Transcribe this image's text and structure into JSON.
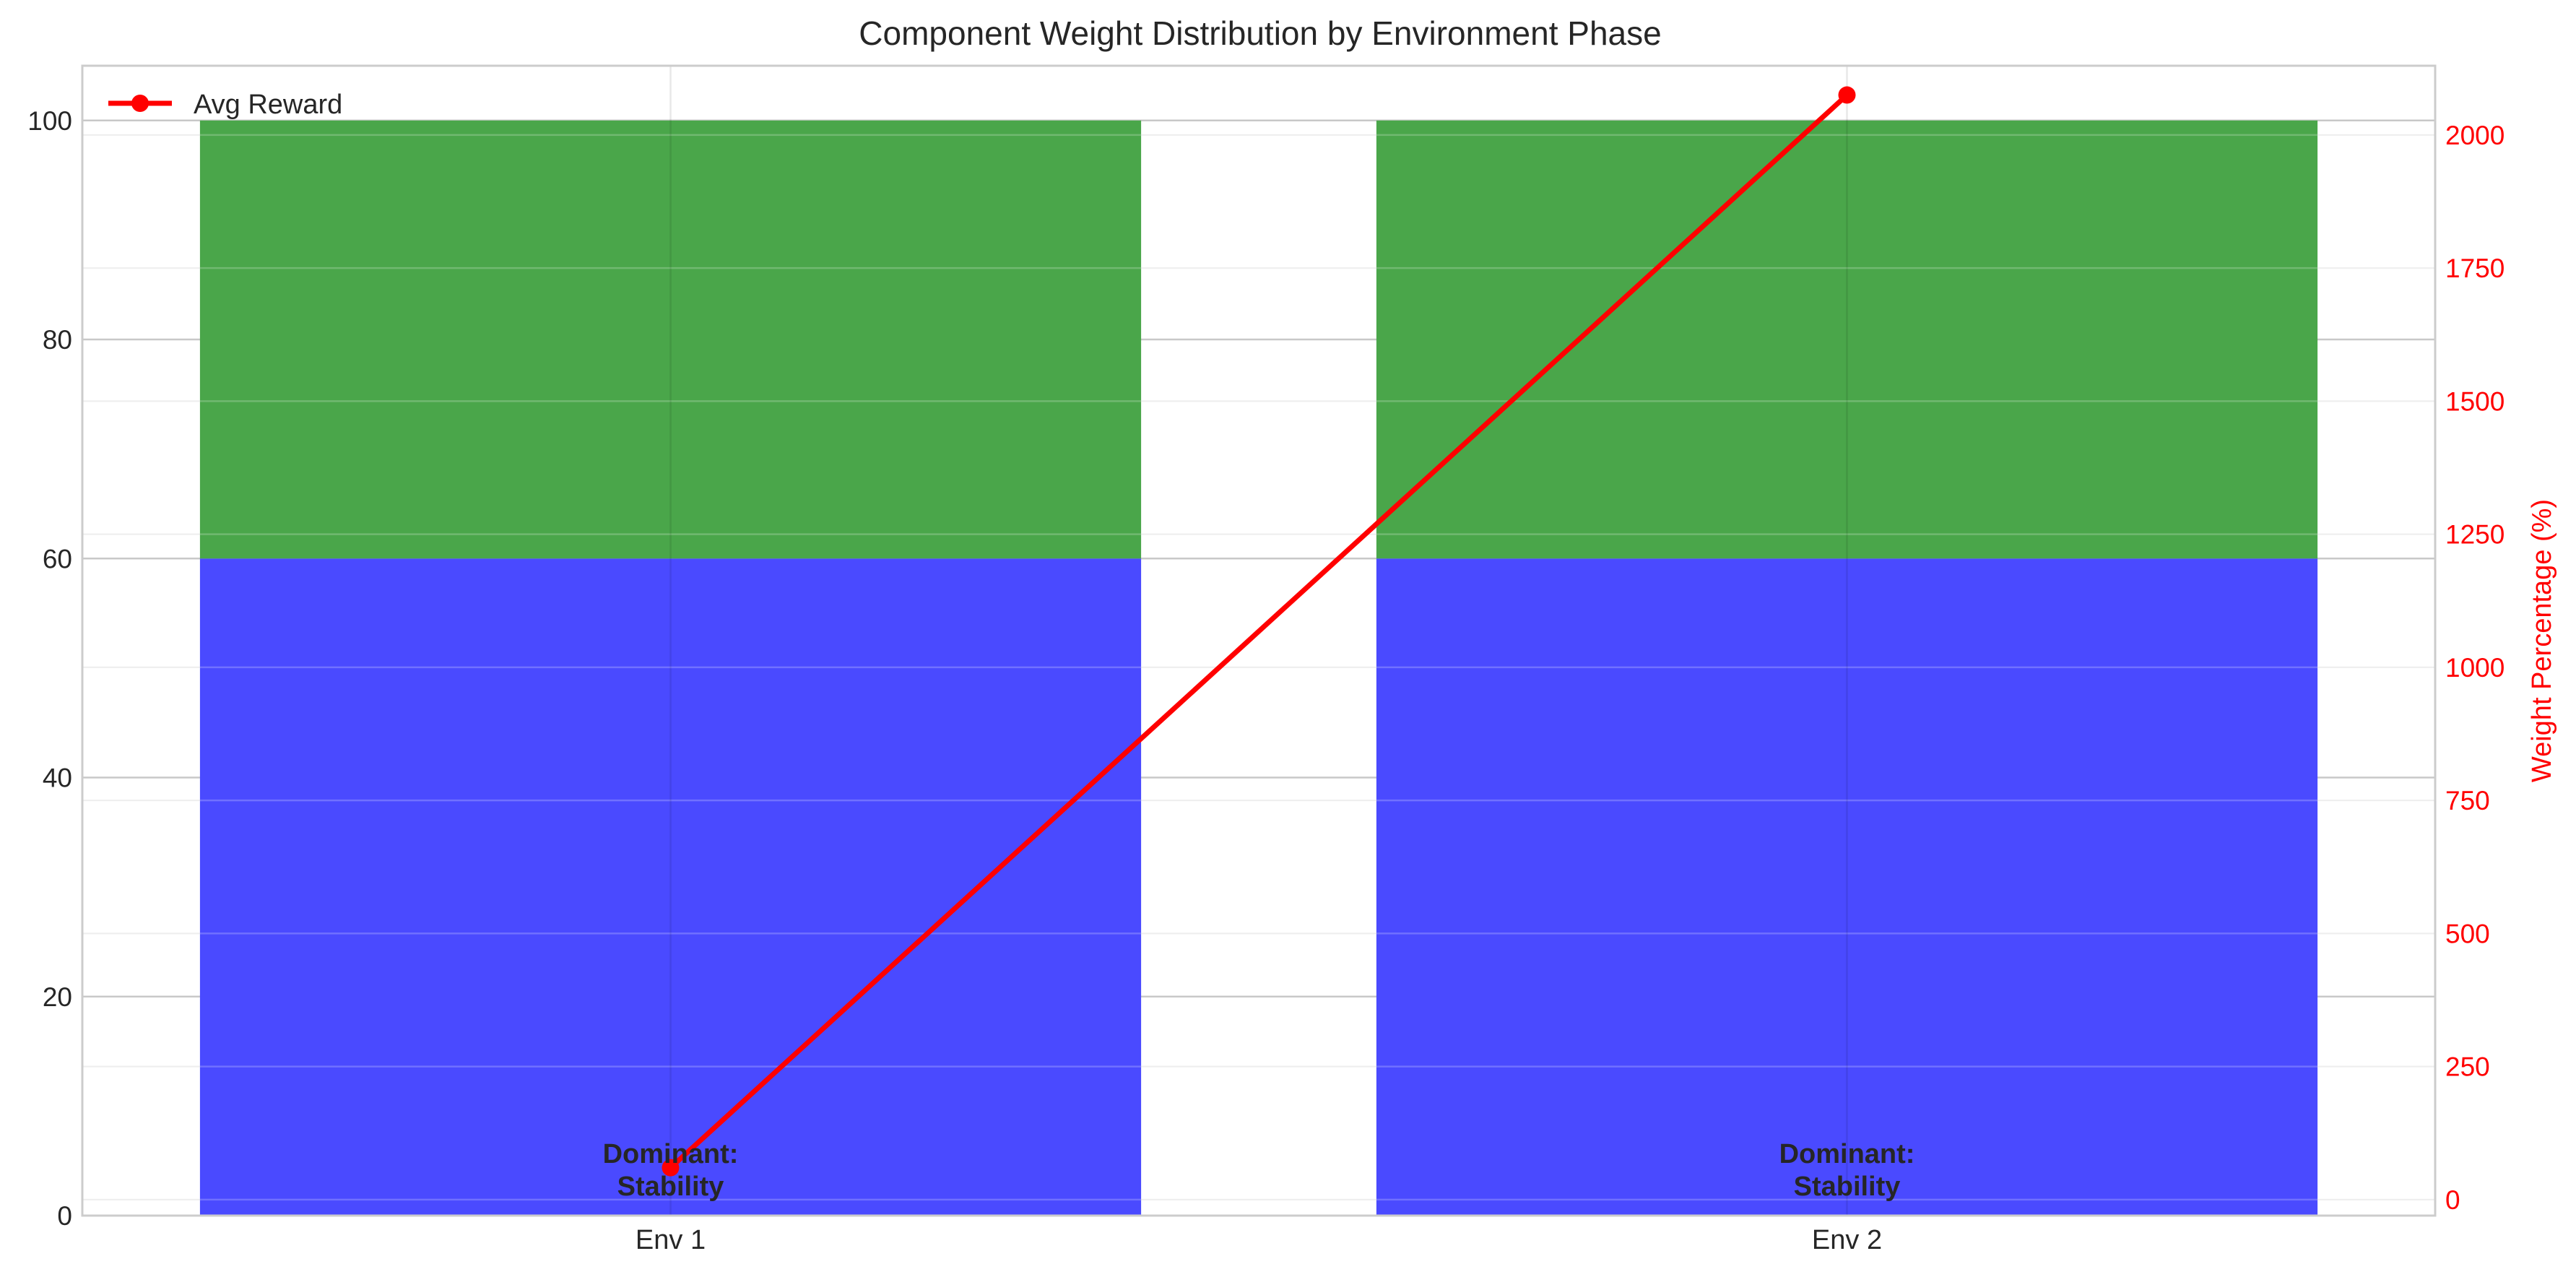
{
  "chart_data": {
    "type": "bar",
    "title": "Component Weight Distribution by Environment Phase",
    "xlabel": "",
    "ylabel": "",
    "y2label": "Weight Percentage (%)",
    "categories": [
      "Env 1",
      "Env 2"
    ],
    "ylim": [
      0,
      105
    ],
    "y_ticks": [
      0,
      20,
      40,
      60,
      80,
      100
    ],
    "y2lim": [
      -30,
      2130
    ],
    "y2_ticks": [
      0,
      250,
      500,
      750,
      1000,
      1250,
      1500,
      1750,
      2000
    ],
    "stacked": true,
    "grid": true,
    "legend_position": "top-left",
    "series": [
      {
        "values": [
          60,
          60
        ],
        "color": "#4a4aff"
      },
      {
        "values": [
          40,
          40
        ],
        "color": "#4aa64a"
      }
    ],
    "line_series": {
      "name": "Avg Reward",
      "axis": "right",
      "values": [
        60,
        2075
      ],
      "color": "#ff0000"
    },
    "annotations": [
      {
        "category": "Env 1",
        "lines": [
          "Dominant:",
          "Stability"
        ]
      },
      {
        "category": "Env 2",
        "lines": [
          "Dominant:",
          "Stability"
        ]
      }
    ]
  }
}
